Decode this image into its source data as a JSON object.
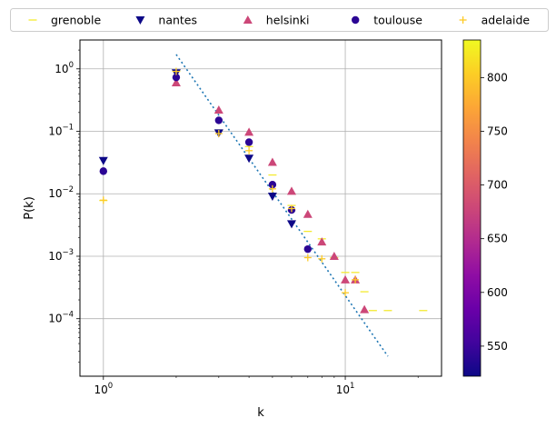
{
  "chart_data": {
    "type": "scatter",
    "xlabel": "k",
    "ylabel": "P(k)",
    "xscale": "log",
    "yscale": "log",
    "xlim": [
      0.8,
      25
    ],
    "ylim": [
      1.2e-05,
      2.9
    ],
    "grid": true,
    "x_ticks": [
      {
        "value": 1,
        "label_base": "10",
        "label_exp": "0"
      },
      {
        "value": 10,
        "label_base": "10",
        "label_exp": "1"
      }
    ],
    "y_ticks": [
      {
        "value": 1,
        "label_base": "10",
        "label_exp": "0"
      },
      {
        "value": 0.1,
        "label_base": "10",
        "label_exp": "−1"
      },
      {
        "value": 0.01,
        "label_base": "10",
        "label_exp": "−2"
      },
      {
        "value": 0.001,
        "label_base": "10",
        "label_exp": "−3"
      },
      {
        "value": 0.0001,
        "label_base": "10",
        "label_exp": "−4"
      }
    ],
    "legend_position": "top",
    "series": [
      {
        "name": "grenoble",
        "marker": "hline",
        "color": "#f4ea30",
        "points": [
          [
            1,
            0.0078
          ],
          [
            2,
            0.92
          ],
          [
            3,
            0.105
          ],
          [
            4,
            0.057
          ],
          [
            5,
            0.02
          ],
          [
            6,
            0.0065
          ],
          [
            7,
            0.0025
          ],
          [
            8,
            0.0019
          ],
          [
            9,
            0.00095
          ],
          [
            10,
            0.00055
          ],
          [
            11,
            0.00055
          ],
          [
            12,
            0.00027
          ],
          [
            13,
            0.000135
          ],
          [
            15,
            0.000135
          ],
          [
            21,
            0.000135
          ]
        ]
      },
      {
        "name": "nantes",
        "marker": "triangle_down",
        "color": "#0d0887",
        "points": [
          [
            1,
            0.034
          ],
          [
            2,
            0.86
          ],
          [
            3,
            0.094
          ],
          [
            4,
            0.037
          ],
          [
            5,
            0.0091
          ],
          [
            6,
            0.0033
          ]
        ]
      },
      {
        "name": "helsinki",
        "marker": "triangle_up",
        "color": "#cc4778",
        "points": [
          [
            2,
            0.6
          ],
          [
            3,
            0.22
          ],
          [
            4,
            0.097
          ],
          [
            5,
            0.032
          ],
          [
            6,
            0.011
          ],
          [
            7,
            0.0047
          ],
          [
            8,
            0.0017
          ],
          [
            9,
            0.001
          ],
          [
            10,
            0.00042
          ],
          [
            11,
            0.00042
          ],
          [
            12,
            0.00014
          ]
        ]
      },
      {
        "name": "toulouse",
        "marker": "circle",
        "color": "#2b0594",
        "points": [
          [
            1,
            0.023
          ],
          [
            2,
            0.73
          ],
          [
            3,
            0.15
          ],
          [
            4,
            0.067
          ],
          [
            5,
            0.014
          ],
          [
            6,
            0.0055
          ],
          [
            7,
            0.0013
          ]
        ]
      },
      {
        "name": "adelaide",
        "marker": "plus",
        "color": "#fdca26",
        "points": [
          [
            1,
            0.0079
          ],
          [
            2,
            0.91
          ],
          [
            3,
            0.092
          ],
          [
            4,
            0.049
          ],
          [
            5,
            0.012
          ],
          [
            6,
            0.0058
          ],
          [
            7,
            0.00095
          ],
          [
            8,
            0.00091
          ],
          [
            10,
            0.00026
          ],
          [
            11,
            0.00042
          ]
        ]
      }
    ],
    "fit_line": {
      "style": "dotted",
      "color": "#1f77b4",
      "x": [
        2,
        15
      ],
      "y": [
        1.7,
        2.5e-05
      ]
    },
    "colorbar": {
      "colormap": "plasma",
      "min": 522,
      "max": 835,
      "ticks": [
        "550",
        "600",
        "650",
        "700",
        "750",
        "800"
      ],
      "tick_values": [
        550,
        600,
        650,
        700,
        750,
        800
      ],
      "stops": [
        "#0d0887",
        "#41049d",
        "#6a00a8",
        "#8f0da4",
        "#b12a90",
        "#cc4778",
        "#e16462",
        "#f2844b",
        "#fca636",
        "#fcce25",
        "#f0f921"
      ]
    }
  }
}
